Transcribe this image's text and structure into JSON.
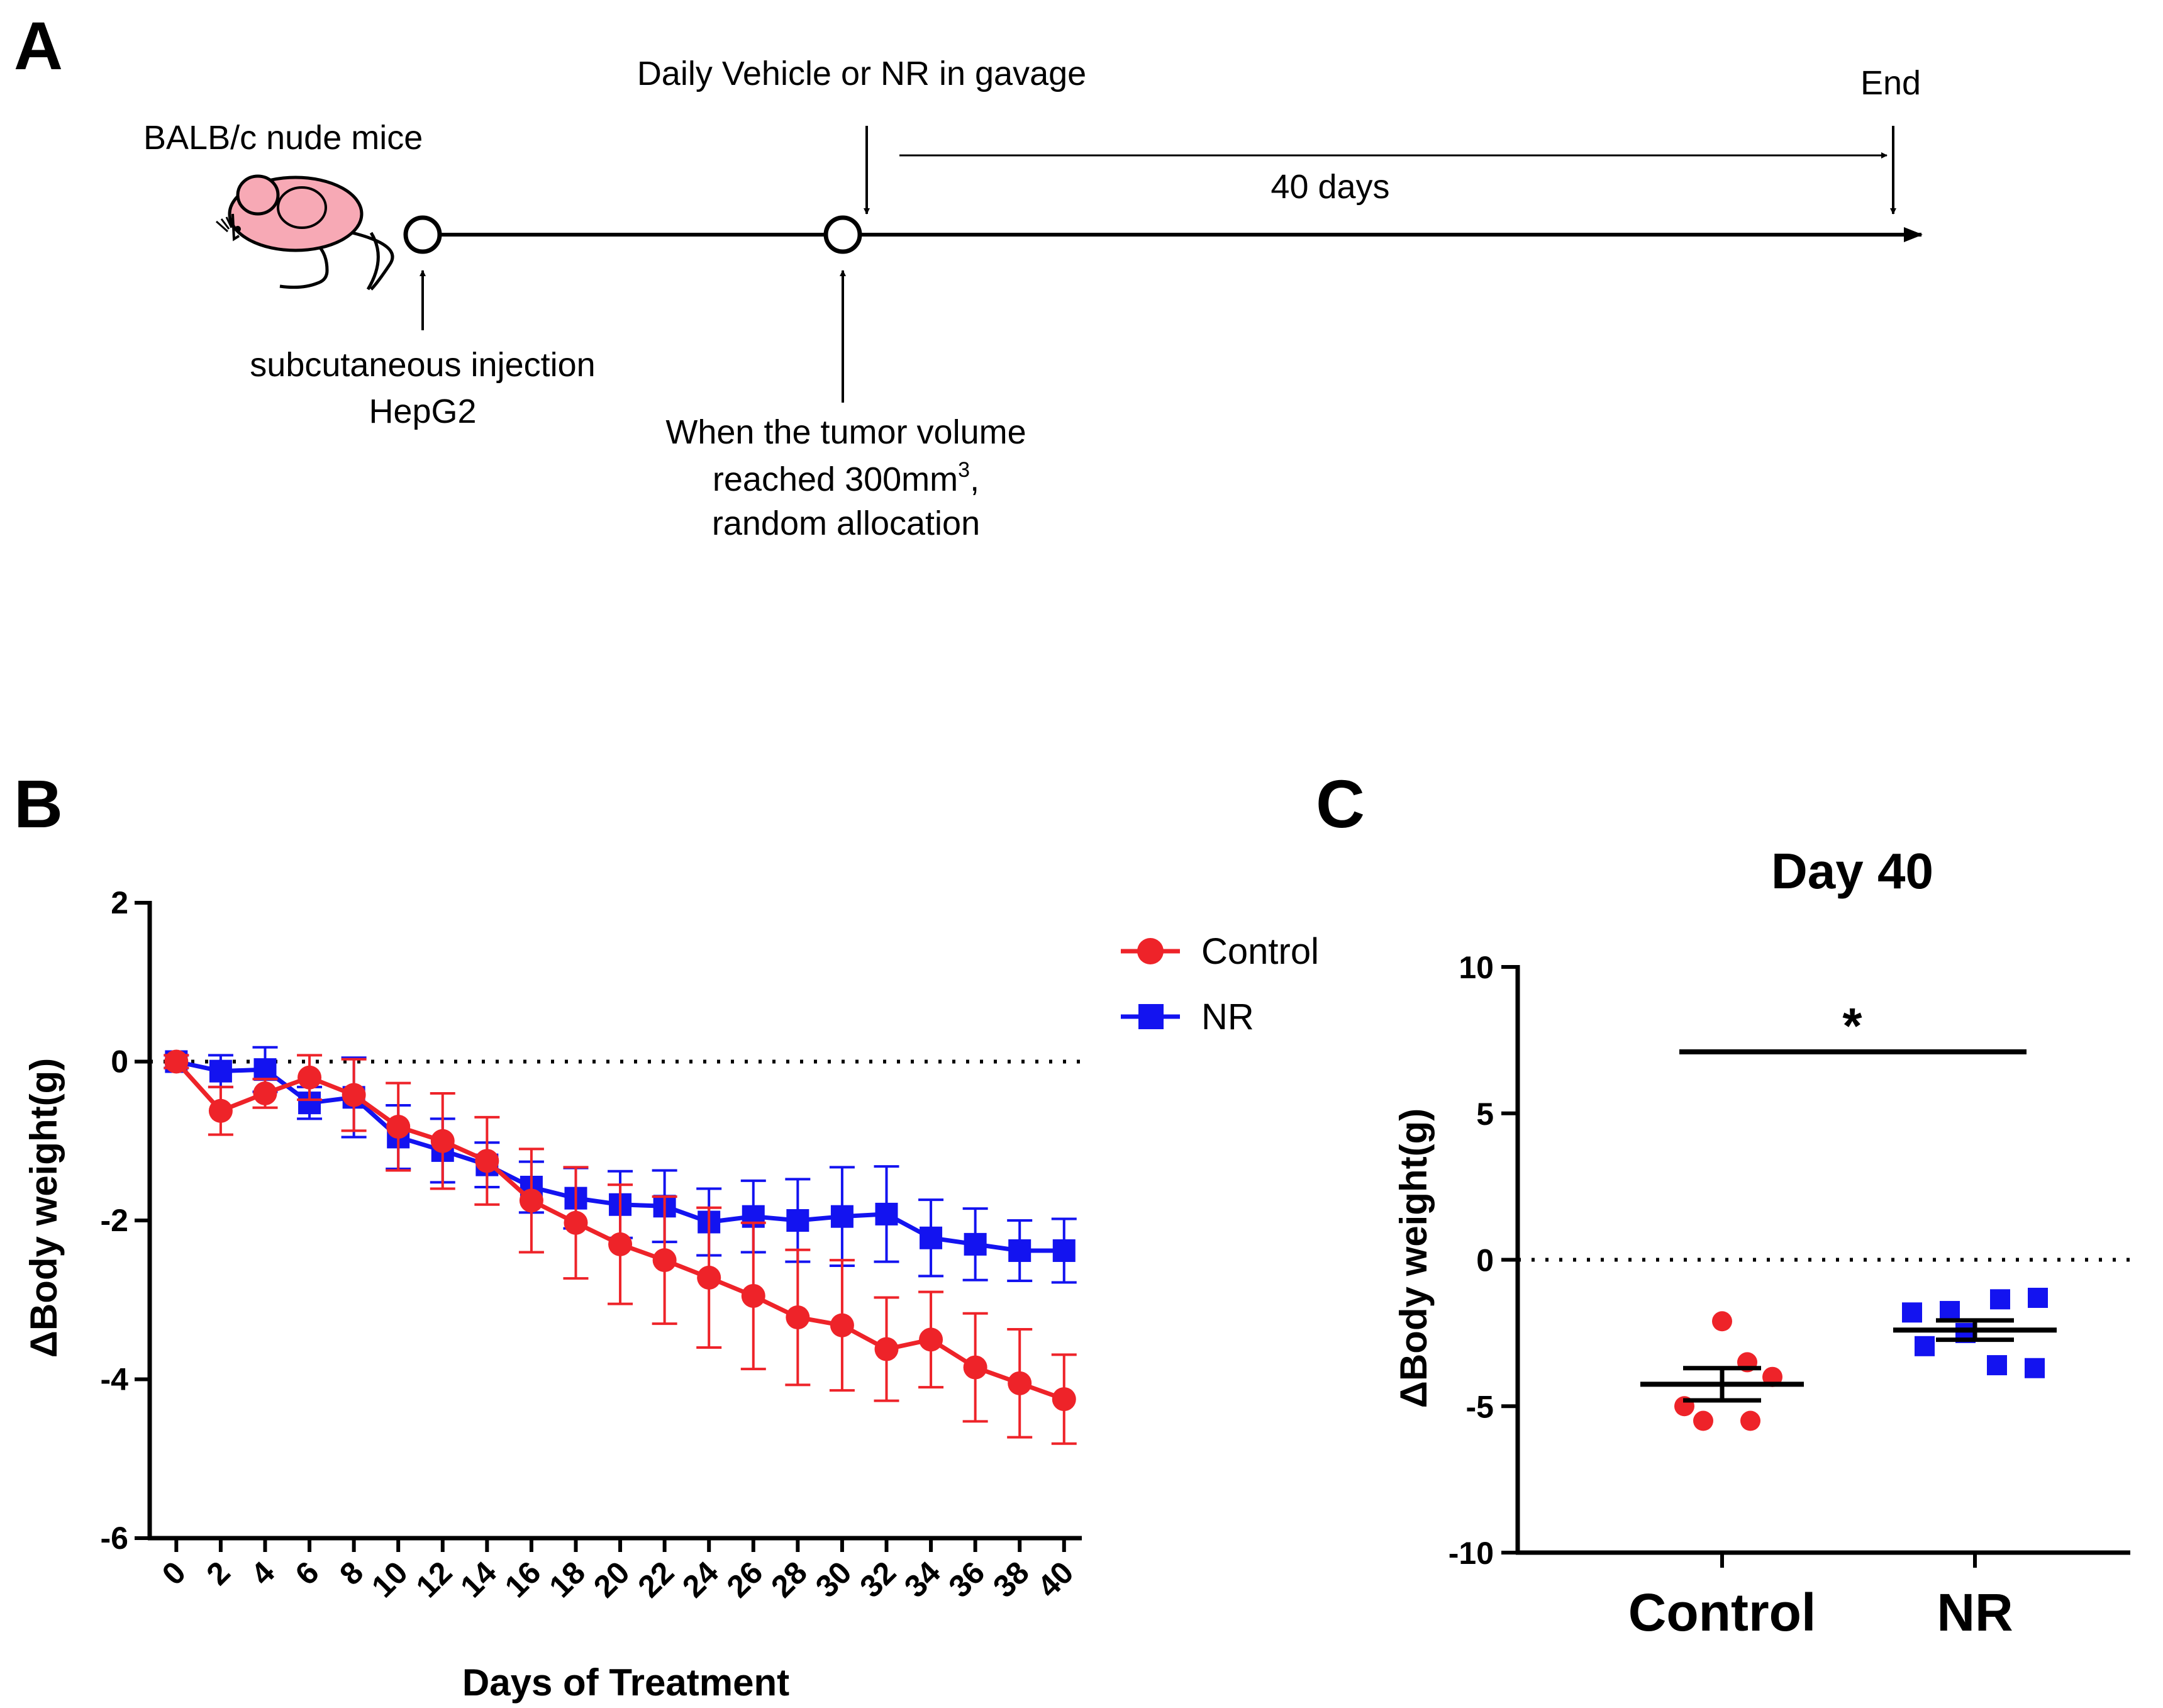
{
  "panels": {
    "a": "A",
    "b": "B",
    "c": "C"
  },
  "timeline": {
    "species": "BALB/c nude mice",
    "treatment": "Daily Vehicle or NR in gavage",
    "end": "End",
    "duration": "40 days",
    "injection_line1": "subcutaneous injection",
    "injection_line2": "HepG2",
    "alloc_line1": "When the tumor volume",
    "alloc_line2_prefix": "reached 300mm",
    "alloc_line2_sup": "3",
    "alloc_line2_suffix": ",",
    "alloc_line3": "random allocation"
  },
  "colors": {
    "control": "#ee2329",
    "nr": "#1313f0",
    "mouse_fill": "#f7a9b5",
    "axis": "#000000"
  },
  "chart_data": [
    {
      "id": "B",
      "type": "line",
      "title": "",
      "xlabel": "Days of Treatment",
      "ylabel": "ΔBody weight(g)",
      "x": [
        0,
        2,
        4,
        6,
        8,
        10,
        12,
        14,
        16,
        18,
        20,
        22,
        24,
        26,
        28,
        30,
        32,
        34,
        36,
        38,
        40
      ],
      "x_tick_labels": [
        "0",
        "2",
        "4",
        "6",
        "8",
        "10",
        "12",
        "14",
        "16",
        "18",
        "20",
        "22",
        "24",
        "26",
        "28",
        "30",
        "32",
        "34",
        "36",
        "38",
        "40"
      ],
      "ylim": [
        -6,
        2
      ],
      "yticks": [
        2,
        0,
        -2,
        -4,
        -6
      ],
      "reference_line": 0,
      "legend_position": "top-right",
      "series": [
        {
          "name": "Control",
          "marker": "circle",
          "color": "#ee2329",
          "values": [
            0,
            -0.62,
            -0.4,
            -0.2,
            -0.42,
            -0.82,
            -1.0,
            -1.25,
            -1.75,
            -2.03,
            -2.3,
            -2.5,
            -2.72,
            -2.95,
            -3.22,
            -3.32,
            -3.62,
            -3.5,
            -3.85,
            -4.05,
            -4.25
          ],
          "errors": [
            0.08,
            0.3,
            0.18,
            0.28,
            0.45,
            0.55,
            0.6,
            0.55,
            0.65,
            0.7,
            0.75,
            0.8,
            0.88,
            0.92,
            0.85,
            0.82,
            0.65,
            0.6,
            0.68,
            0.68,
            0.56
          ]
        },
        {
          "name": "NR",
          "marker": "square",
          "color": "#1313f0",
          "values": [
            0,
            -0.12,
            -0.1,
            -0.52,
            -0.45,
            -0.95,
            -1.12,
            -1.3,
            -1.58,
            -1.72,
            -1.8,
            -1.82,
            -2.02,
            -1.95,
            -2.0,
            -1.95,
            -1.92,
            -2.22,
            -2.3,
            -2.38,
            -2.38
          ],
          "errors": [
            0.08,
            0.2,
            0.28,
            0.2,
            0.5,
            0.4,
            0.4,
            0.28,
            0.32,
            0.38,
            0.42,
            0.45,
            0.42,
            0.45,
            0.52,
            0.62,
            0.6,
            0.48,
            0.45,
            0.38,
            0.4
          ]
        }
      ]
    },
    {
      "id": "C",
      "type": "scatter",
      "title": "Day 40",
      "xlabel": "",
      "ylabel": "ΔBody weight(g)",
      "categories": [
        "Control",
        "NR"
      ],
      "ylim": [
        -10,
        10
      ],
      "yticks": [
        10,
        5,
        0,
        -5,
        -10
      ],
      "reference_line": 0,
      "significance": "*",
      "series": [
        {
          "name": "Control",
          "marker": "circle",
          "color": "#ee2329",
          "points": [
            {
              "jitter": 0.0,
              "y": -2.1
            },
            {
              "jitter": 0.4,
              "y": -3.5
            },
            {
              "jitter": 0.8,
              "y": -4.0
            },
            {
              "jitter": -0.6,
              "y": -5.0
            },
            {
              "jitter": -0.3,
              "y": -5.5
            },
            {
              "jitter": 0.45,
              "y": -5.5
            }
          ],
          "mean": -4.25,
          "sem": 0.55
        },
        {
          "name": "NR",
          "marker": "square",
          "color": "#1313f0",
          "points": [
            {
              "jitter": -1.0,
              "y": -1.8
            },
            {
              "jitter": -0.4,
              "y": -1.75
            },
            {
              "jitter": 0.4,
              "y": -1.35
            },
            {
              "jitter": 1.0,
              "y": -1.3
            },
            {
              "jitter": -0.8,
              "y": -2.95
            },
            {
              "jitter": -0.15,
              "y": -2.5
            },
            {
              "jitter": 0.35,
              "y": -3.6
            },
            {
              "jitter": 0.95,
              "y": -3.7
            }
          ],
          "mean": -2.4,
          "sem": 0.33
        }
      ]
    }
  ]
}
